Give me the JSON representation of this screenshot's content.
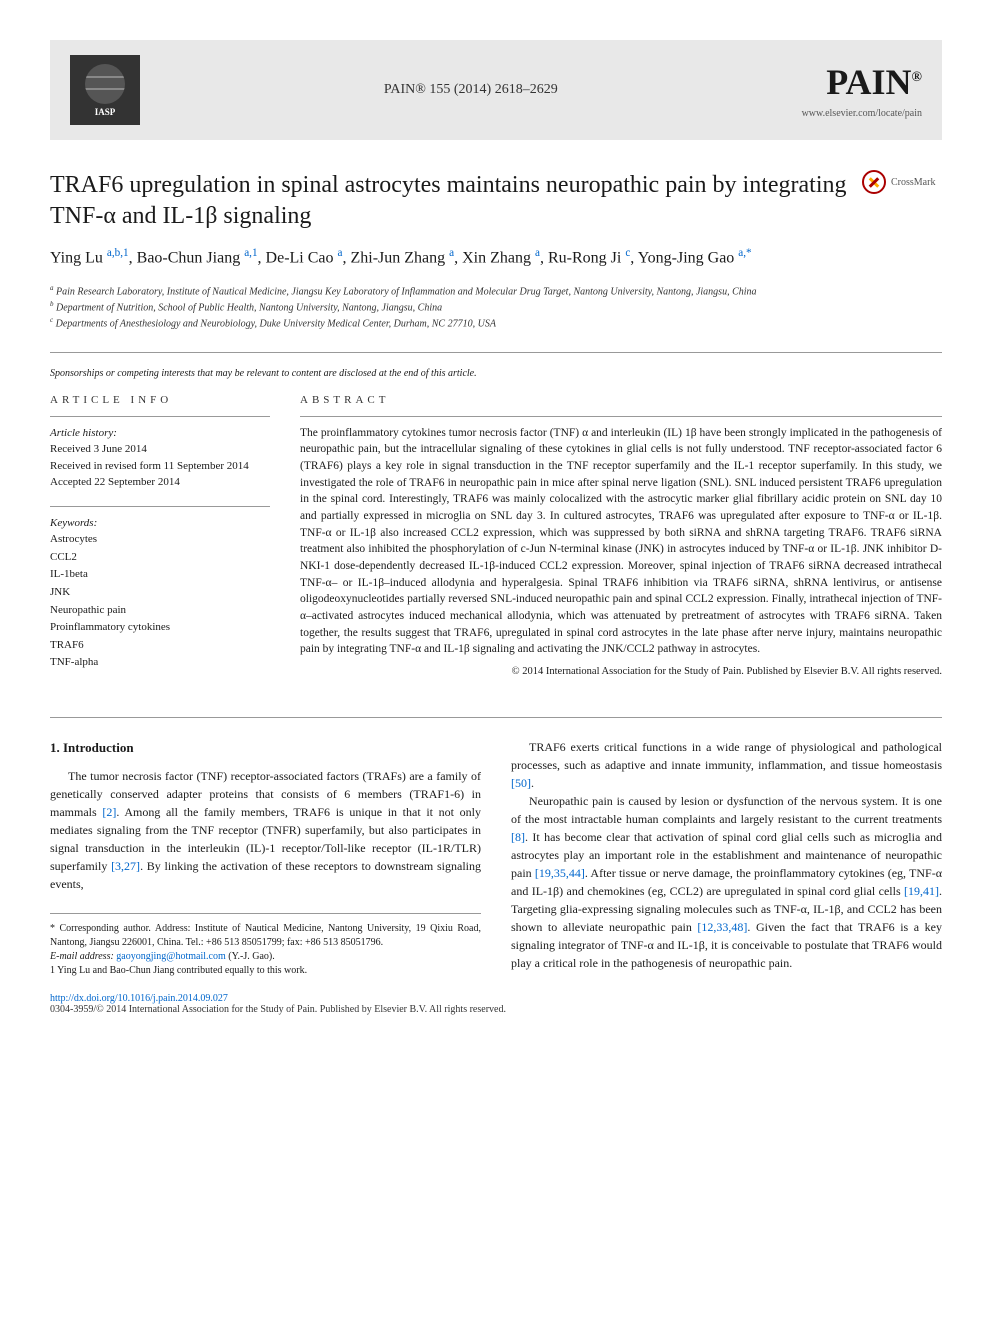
{
  "header": {
    "journal_ref": "PAIN® 155 (2014) 2618–2629",
    "journal_logo": "PAIN",
    "journal_logo_sup": "®",
    "publisher_link": "www.elsevier.com/locate/pain",
    "society": "IASP"
  },
  "crossmark": "CrossMark",
  "title": "TRAF6 upregulation in spinal astrocytes maintains neuropathic pain by integrating TNF-α and IL-1β signaling",
  "authors_html": "Ying Lu <sup>a,b,1</sup>, Bao-Chun Jiang <sup>a,1</sup>, De-Li Cao <sup>a</sup>, Zhi-Jun Zhang <sup>a</sup>, Xin Zhang <sup>a</sup>, Ru-Rong Ji <sup>c</sup>, Yong-Jing Gao <sup>a,*</sup>",
  "affiliations": [
    "a Pain Research Laboratory, Institute of Nautical Medicine, Jiangsu Key Laboratory of Inflammation and Molecular Drug Target, Nantong University, Nantong, Jiangsu, China",
    "b Department of Nutrition, School of Public Health, Nantong University, Nantong, Jiangsu, China",
    "c Departments of Anesthesiology and Neurobiology, Duke University Medical Center, Durham, NC 27710, USA"
  ],
  "sponsorship": "Sponsorships or competing interests that may be relevant to content are disclosed at the end of this article.",
  "article_info": {
    "label": "ARTICLE INFO",
    "history_label": "Article history:",
    "history": [
      "Received 3 June 2014",
      "Received in revised form 11 September 2014",
      "Accepted 22 September 2014"
    ],
    "keywords_label": "Keywords:",
    "keywords": [
      "Astrocytes",
      "CCL2",
      "IL-1beta",
      "JNK",
      "Neuropathic pain",
      "Proinflammatory cytokines",
      "TRAF6",
      "TNF-alpha"
    ]
  },
  "abstract": {
    "label": "ABSTRACT",
    "text": "The proinflammatory cytokines tumor necrosis factor (TNF) α and interleukin (IL) 1β have been strongly implicated in the pathogenesis of neuropathic pain, but the intracellular signaling of these cytokines in glial cells is not fully understood. TNF receptor-associated factor 6 (TRAF6) plays a key role in signal transduction in the TNF receptor superfamily and the IL-1 receptor superfamily. In this study, we investigated the role of TRAF6 in neuropathic pain in mice after spinal nerve ligation (SNL). SNL induced persistent TRAF6 upregulation in the spinal cord. Interestingly, TRAF6 was mainly colocalized with the astrocytic marker glial fibrillary acidic protein on SNL day 10 and partially expressed in microglia on SNL day 3. In cultured astrocytes, TRAF6 was upregulated after exposure to TNF-α or IL-1β. TNF-α or IL-1β also increased CCL2 expression, which was suppressed by both siRNA and shRNA targeting TRAF6. TRAF6 siRNA treatment also inhibited the phosphorylation of c-Jun N-terminal kinase (JNK) in astrocytes induced by TNF-α or IL-1β. JNK inhibitor D-NKI-1 dose-dependently decreased IL-1β-induced CCL2 expression. Moreover, spinal injection of TRAF6 siRNA decreased intrathecal TNF-α– or IL-1β–induced allodynia and hyperalgesia. Spinal TRAF6 inhibition via TRAF6 siRNA, shRNA lentivirus, or antisense oligodeoxynucleotides partially reversed SNL-induced neuropathic pain and spinal CCL2 expression. Finally, intrathecal injection of TNF-α–activated astrocytes induced mechanical allodynia, which was attenuated by pretreatment of astrocytes with TRAF6 siRNA. Taken together, the results suggest that TRAF6, upregulated in spinal cord astrocytes in the late phase after nerve injury, maintains neuropathic pain by integrating TNF-α and IL-1β signaling and activating the JNK/CCL2 pathway in astrocytes.",
    "copyright": "© 2014 International Association for the Study of Pain. Published by Elsevier B.V. All rights reserved."
  },
  "body": {
    "intro_heading": "1. Introduction",
    "col1_p1": "The tumor necrosis factor (TNF) receptor-associated factors (TRAFs) are a family of genetically conserved adapter proteins that consists of 6 members (TRAF1-6) in mammals [2]. Among all the family members, TRAF6 is unique in that it not only mediates signaling from the TNF receptor (TNFR) superfamily, but also participates in signal transduction in the interleukin (IL)-1 receptor/Toll-like receptor (IL-1R/TLR) superfamily [3,27]. By linking the activation of these receptors to downstream signaling events,",
    "col2_p1": "TRAF6 exerts critical functions in a wide range of physiological and pathological processes, such as adaptive and innate immunity, inflammation, and tissue homeostasis [50].",
    "col2_p2": "Neuropathic pain is caused by lesion or dysfunction of the nervous system. It is one of the most intractable human complaints and largely resistant to the current treatments [8]. It has become clear that activation of spinal cord glial cells such as microglia and astrocytes play an important role in the establishment and maintenance of neuropathic pain [19,35,44]. After tissue or nerve damage, the proinflammatory cytokines (eg, TNF-α and IL-1β) and chemokines (eg, CCL2) are upregulated in spinal cord glial cells [19,41]. Targeting glia-expressing signaling molecules such as TNF-α, IL-1β, and CCL2 has been shown to alleviate neuropathic pain [12,33,48]. Given the fact that TRAF6 is a key signaling integrator of TNF-α and IL-1β, it is conceivable to postulate that TRAF6 would play a critical role in the pathogenesis of neuropathic pain."
  },
  "footnotes": {
    "corresponding": "* Corresponding author. Address: Institute of Nautical Medicine, Nantong University, 19 Qixiu Road, Nantong, Jiangsu 226001, China. Tel.: +86 513 85051799; fax: +86 513 85051796.",
    "email_label": "E-mail address:",
    "email": "gaoyongjing@hotmail.com",
    "email_suffix": "(Y.-J. Gao).",
    "contrib": "1 Ying Lu and Bao-Chun Jiang contributed equally to this work.",
    "doi": "http://dx.doi.org/10.1016/j.pain.2014.09.027",
    "issn": "0304-3959/© 2014 International Association for the Study of Pain. Published by Elsevier B.V. All rights reserved."
  },
  "colors": {
    "link": "#0066cc",
    "header_bg": "#e8e8e8",
    "text": "#1a1a1a",
    "divider": "#999999"
  }
}
